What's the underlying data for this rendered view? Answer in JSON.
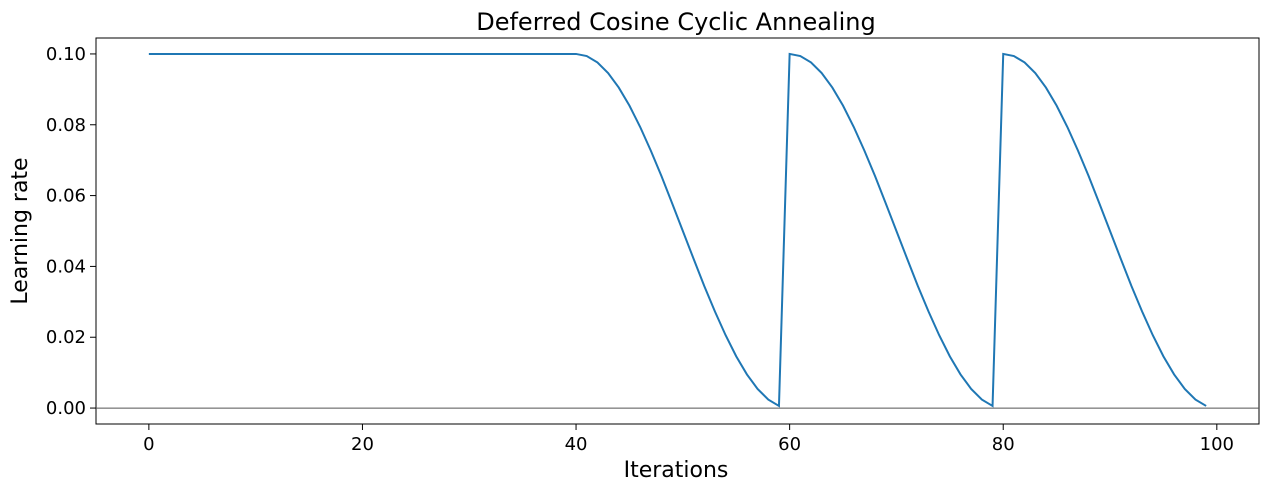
{
  "chart_data": {
    "type": "line",
    "title": "Deferred Cosine Cyclic Annealing",
    "xlabel": "Iterations",
    "ylabel": "Learning rate",
    "xlim": [
      -4.95,
      103.95
    ],
    "ylim": [
      -0.0045,
      0.1045
    ],
    "xticks": [
      0,
      20,
      40,
      60,
      80,
      100
    ],
    "yticks": [
      0.0,
      0.02,
      0.04,
      0.06,
      0.08,
      0.1
    ],
    "grid": false,
    "baseline": 0,
    "colors": {
      "series": "#1f77b4",
      "baseline": "#555555"
    },
    "series": [
      {
        "x": [
          0,
          1,
          2,
          3,
          4,
          5,
          6,
          7,
          8,
          9,
          10,
          11,
          12,
          13,
          14,
          15,
          16,
          17,
          18,
          19,
          20,
          21,
          22,
          23,
          24,
          25,
          26,
          27,
          28,
          29,
          30,
          31,
          32,
          33,
          34,
          35,
          36,
          37,
          38,
          39,
          40,
          41,
          42,
          43,
          44,
          45,
          46,
          47,
          48,
          49,
          50,
          51,
          52,
          53,
          54,
          55,
          56,
          57,
          58,
          59,
          60,
          61,
          62,
          63,
          64,
          65,
          66,
          67,
          68,
          69,
          70,
          71,
          72,
          73,
          74,
          75,
          76,
          77,
          78,
          79,
          80,
          81,
          82,
          83,
          84,
          85,
          86,
          87,
          88,
          89,
          90,
          91,
          92,
          93,
          94,
          95,
          96,
          97,
          98,
          99
        ],
        "values": [
          0.1,
          0.1,
          0.1,
          0.1,
          0.1,
          0.1,
          0.1,
          0.1,
          0.1,
          0.1,
          0.1,
          0.1,
          0.1,
          0.1,
          0.1,
          0.1,
          0.1,
          0.1,
          0.1,
          0.1,
          0.1,
          0.1,
          0.1,
          0.1,
          0.1,
          0.1,
          0.1,
          0.1,
          0.1,
          0.1,
          0.1,
          0.1,
          0.1,
          0.1,
          0.1,
          0.1,
          0.1,
          0.1,
          0.1,
          0.1,
          0.1,
          0.0994,
          0.0976,
          0.0946,
          0.0905,
          0.0854,
          0.0794,
          0.0727,
          0.0655,
          0.0578,
          0.05,
          0.0422,
          0.0345,
          0.0273,
          0.0206,
          0.0146,
          0.0095,
          0.0054,
          0.0024,
          0.0006,
          0.1,
          0.0994,
          0.0976,
          0.0946,
          0.0905,
          0.0854,
          0.0794,
          0.0727,
          0.0655,
          0.0578,
          0.05,
          0.0422,
          0.0345,
          0.0273,
          0.0206,
          0.0146,
          0.0095,
          0.0054,
          0.0024,
          0.0006,
          0.1,
          0.0994,
          0.0976,
          0.0946,
          0.0905,
          0.0854,
          0.0794,
          0.0727,
          0.0655,
          0.0578,
          0.05,
          0.0422,
          0.0345,
          0.0273,
          0.0206,
          0.0146,
          0.0095,
          0.0054,
          0.0024,
          0.0006
        ]
      }
    ]
  }
}
